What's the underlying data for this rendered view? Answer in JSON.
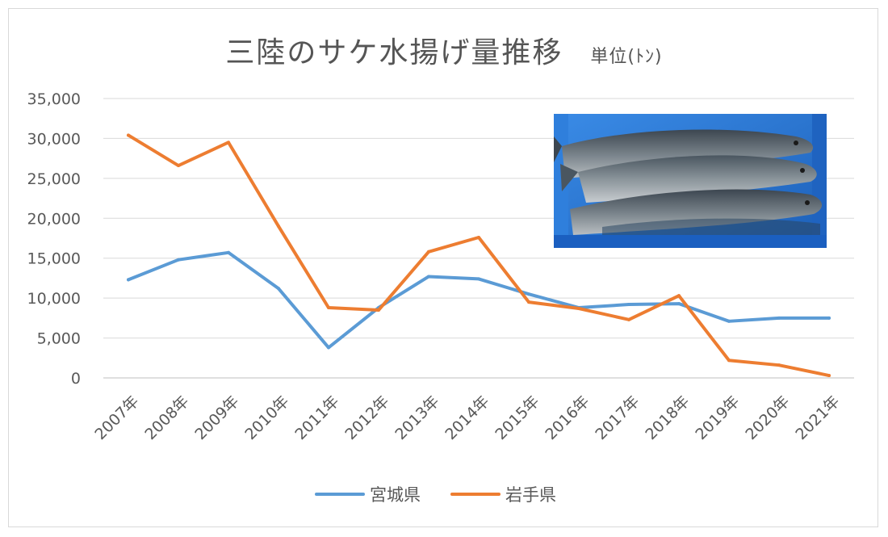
{
  "title": "三陸のサケ水揚げ量推移",
  "unit_label": "単位(ﾄﾝ)",
  "chart_data": {
    "type": "line",
    "categories": [
      "2007年",
      "2008年",
      "2009年",
      "2010年",
      "2011年",
      "2012年",
      "2013年",
      "2014年",
      "2015年",
      "2016年",
      "2017年",
      "2018年",
      "2019年",
      "2020年",
      "2021年"
    ],
    "y_ticks": [
      "0",
      "5,000",
      "10,000",
      "15,000",
      "20,000",
      "25,000",
      "30,000",
      "35,000"
    ],
    "ylim": [
      0,
      35000
    ],
    "grid": true,
    "legend_position": "bottom",
    "series": [
      {
        "name": "宮城県",
        "color": "#5b9bd5",
        "values": [
          12300,
          14800,
          15700,
          11200,
          3800,
          8800,
          12700,
          12400,
          10500,
          8800,
          9200,
          9300,
          7100,
          7500,
          7500
        ]
      },
      {
        "name": "岩手県",
        "color": "#ed7d31",
        "values": [
          30400,
          26600,
          29500,
          19000,
          8800,
          8500,
          15800,
          17600,
          9500,
          8700,
          7300,
          10300,
          2200,
          1600,
          300
        ]
      }
    ]
  },
  "photo": {
    "subject": "salmon-in-blue-crate"
  }
}
